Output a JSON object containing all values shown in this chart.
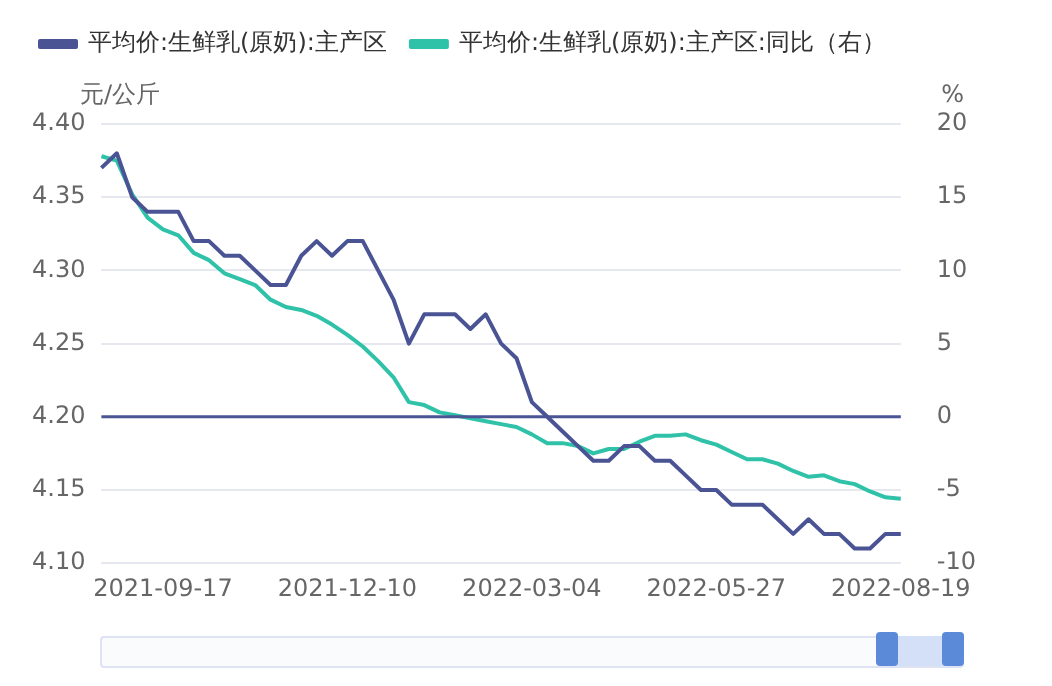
{
  "chart_data": {
    "type": "line",
    "categories": [
      null,
      null,
      null,
      null,
      "2021-09-17",
      null,
      null,
      null,
      null,
      null,
      null,
      null,
      null,
      null,
      null,
      null,
      "2021-12-10",
      null,
      null,
      null,
      null,
      null,
      null,
      null,
      null,
      null,
      null,
      null,
      "2022-03-04",
      null,
      null,
      null,
      null,
      null,
      null,
      null,
      null,
      null,
      null,
      null,
      "2022-05-27",
      null,
      null,
      null,
      null,
      null,
      null,
      null,
      null,
      null,
      null,
      null,
      "2022-08-19"
    ],
    "series": [
      {
        "name": "平均价:生鲜乳(原奶):主产区",
        "color": "#4a5494",
        "values": [
          4.37,
          4.38,
          4.35,
          4.34,
          4.34,
          4.34,
          4.32,
          4.32,
          4.31,
          4.31,
          4.3,
          4.29,
          4.29,
          4.31,
          4.32,
          4.31,
          4.32,
          4.32,
          4.3,
          4.28,
          4.25,
          4.27,
          4.27,
          4.27,
          4.26,
          4.27,
          4.25,
          4.24,
          4.21,
          4.2,
          4.19,
          4.18,
          4.17,
          4.17,
          4.18,
          4.18,
          4.17,
          4.17,
          4.16,
          4.15,
          4.15,
          4.14,
          4.14,
          4.14,
          4.13,
          4.12,
          4.13,
          4.12,
          4.12,
          4.11,
          4.11,
          4.12,
          4.12
        ]
      },
      {
        "name": "平均价:生鲜乳(原奶):主产区:同比（右）",
        "color": "#2fc2a9",
        "axis": "y2",
        "values": [
          17.8,
          17.5,
          15.2,
          13.6,
          12.8,
          12.4,
          11.2,
          10.7,
          9.8,
          9.4,
          9.0,
          8.0,
          7.5,
          7.3,
          6.9,
          6.3,
          5.6,
          4.8,
          3.8,
          2.7,
          1.0,
          0.8,
          0.3,
          0.1,
          -0.1,
          -0.3,
          -0.5,
          -0.7,
          -1.2,
          -1.8,
          -1.8,
          -2.0,
          -2.5,
          -2.2,
          -2.2,
          -1.7,
          -1.3,
          -1.3,
          -1.2,
          -1.6,
          -1.9,
          -2.4,
          -2.9,
          -2.9,
          -3.2,
          -3.7,
          -4.1,
          -4.0,
          -4.4,
          -4.6,
          -5.1,
          -5.5,
          -5.6
        ]
      }
    ],
    "ylabel": "元/公斤",
    "y2label": "%",
    "ylim": [
      4.1,
      4.4
    ],
    "yticks": [
      {
        "value": 4.1,
        "label": "4.10"
      },
      {
        "value": 4.15,
        "label": "4.15"
      },
      {
        "value": 4.2,
        "label": "4.20"
      },
      {
        "value": 4.25,
        "label": "4.25"
      },
      {
        "value": 4.3,
        "label": "4.30"
      },
      {
        "value": 4.35,
        "label": "4.35"
      },
      {
        "value": 4.4,
        "label": "4.40"
      }
    ],
    "y2lim": [
      -10,
      20
    ],
    "y2ticks": [
      -10,
      -5,
      0,
      5,
      10,
      15,
      20
    ],
    "ref_lines": [
      {
        "axis": "y2",
        "value": 0,
        "color": "#4a5494"
      }
    ],
    "grid": "y",
    "legend": "top left",
    "marker": "none"
  }
}
